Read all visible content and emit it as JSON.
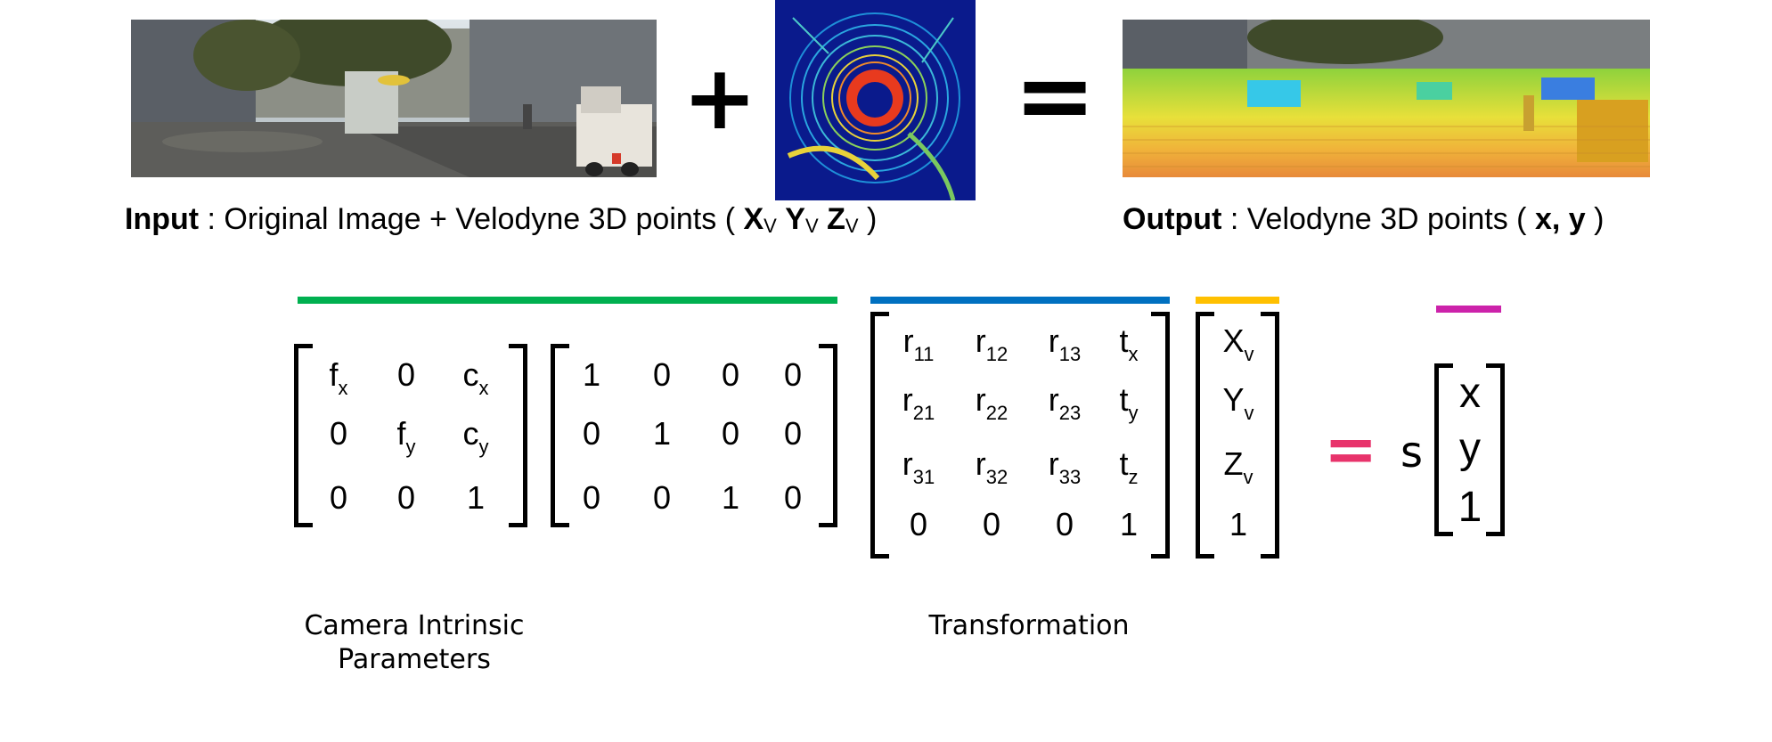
{
  "operators": {
    "plus": "+",
    "equals": "=",
    "pink_equals": "="
  },
  "input_caption": {
    "bold": "Input",
    "text": " : Original Image + Velodyne 3D points ( ",
    "x": "X",
    "x_sub": "V",
    "y": "Y",
    "y_sub": "V",
    "z": "Z",
    "z_sub": "V",
    "close": " )"
  },
  "output_caption": {
    "bold": "Output",
    "text": " : Velodyne 3D points ( ",
    "xy": "x, y",
    "close": " )"
  },
  "colors": {
    "green": "#00b050",
    "blue": "#0070c0",
    "yellow": "#ffc000",
    "magenta": "#cc22aa",
    "pink": "#e8336b"
  },
  "intrinsic": [
    [
      {
        "b": "f",
        "s": "x"
      },
      {
        "b": "0",
        "s": ""
      },
      {
        "b": "c",
        "s": "x"
      }
    ],
    [
      {
        "b": "0",
        "s": ""
      },
      {
        "b": "f",
        "s": "y"
      },
      {
        "b": "c",
        "s": "y"
      }
    ],
    [
      {
        "b": "0",
        "s": ""
      },
      {
        "b": "0",
        "s": ""
      },
      {
        "b": "1",
        "s": ""
      }
    ]
  ],
  "projection": [
    [
      {
        "b": "1",
        "s": ""
      },
      {
        "b": "0",
        "s": ""
      },
      {
        "b": "0",
        "s": ""
      },
      {
        "b": "0",
        "s": ""
      }
    ],
    [
      {
        "b": "0",
        "s": ""
      },
      {
        "b": "1",
        "s": ""
      },
      {
        "b": "0",
        "s": ""
      },
      {
        "b": "0",
        "s": ""
      }
    ],
    [
      {
        "b": "0",
        "s": ""
      },
      {
        "b": "0",
        "s": ""
      },
      {
        "b": "1",
        "s": ""
      },
      {
        "b": "0",
        "s": ""
      }
    ]
  ],
  "transformation": [
    [
      {
        "b": "r",
        "s": "11"
      },
      {
        "b": "r",
        "s": "12"
      },
      {
        "b": "r",
        "s": "13"
      },
      {
        "b": "t",
        "s": "x"
      }
    ],
    [
      {
        "b": "r",
        "s": "21"
      },
      {
        "b": "r",
        "s": "22"
      },
      {
        "b": "r",
        "s": "23"
      },
      {
        "b": "t",
        "s": "y"
      }
    ],
    [
      {
        "b": "r",
        "s": "31"
      },
      {
        "b": "r",
        "s": "32"
      },
      {
        "b": "r",
        "s": "33"
      },
      {
        "b": "t",
        "s": "z"
      }
    ],
    [
      {
        "b": "0",
        "s": ""
      },
      {
        "b": "0",
        "s": ""
      },
      {
        "b": "0",
        "s": ""
      },
      {
        "b": "1",
        "s": ""
      }
    ]
  ],
  "point_vector": [
    [
      {
        "b": "X",
        "s": "v"
      }
    ],
    [
      {
        "b": "Y",
        "s": "v"
      }
    ],
    [
      {
        "b": "Z",
        "s": "v"
      }
    ],
    [
      {
        "b": "1",
        "s": ""
      }
    ]
  ],
  "result": {
    "scale": "s",
    "x": "x",
    "y": "y",
    "one": "1"
  },
  "labels": {
    "intrinsic": "Camera Intrinsic Parameters",
    "transformation": "Transformation"
  }
}
